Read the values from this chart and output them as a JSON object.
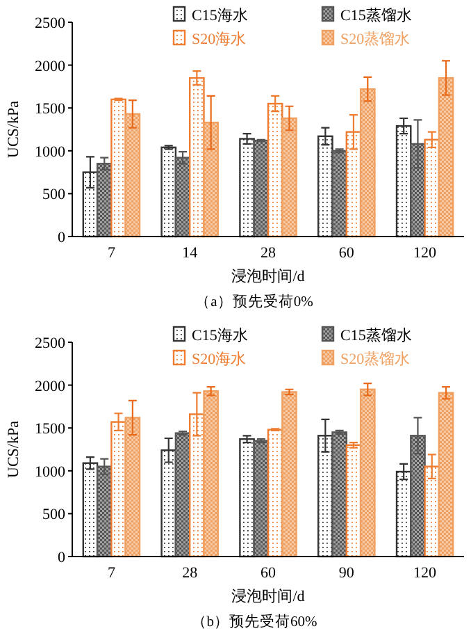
{
  "chart_data": [
    {
      "type": "bar",
      "title": "（a）预先受荷0%",
      "xlabel": "浸泡时间/d",
      "ylabel": "UCS/kPa",
      "categories": [
        "7",
        "14",
        "28",
        "60",
        "120"
      ],
      "ylim": [
        0,
        2500
      ],
      "yticks": [
        0,
        500,
        1000,
        1500,
        2000,
        2500
      ],
      "legend": "top",
      "grid": false,
      "series": [
        {
          "name": "C15海水",
          "color": "#333333",
          "values": [
            750,
            1040,
            1140,
            1170,
            1290
          ],
          "errors": [
            180,
            20,
            60,
            100,
            90
          ]
        },
        {
          "name": "C15蒸馏水",
          "color": "#555555",
          "values": [
            850,
            920,
            1120,
            1000,
            1080
          ],
          "errors": [
            70,
            70,
            10,
            20,
            280
          ]
        },
        {
          "name": "S20海水",
          "color": "#ee7d31",
          "values": [
            1600,
            1850,
            1550,
            1220,
            1130
          ],
          "errors": [
            10,
            80,
            90,
            200,
            90
          ]
        },
        {
          "name": "S20蒸馏水",
          "color": "#f0a060",
          "values": [
            1430,
            1330,
            1380,
            1720,
            1850
          ],
          "errors": [
            160,
            310,
            140,
            140,
            200
          ]
        }
      ]
    },
    {
      "type": "bar",
      "title": "（b）预先受荷60%",
      "xlabel": "浸泡时间/d",
      "ylabel": "UCS/kPa",
      "categories": [
        "7",
        "28",
        "60",
        "90",
        "120"
      ],
      "ylim": [
        0,
        2500
      ],
      "yticks": [
        0,
        500,
        1000,
        1500,
        2000,
        2500
      ],
      "legend": "top",
      "grid": false,
      "series": [
        {
          "name": "C15海水",
          "color": "#333333",
          "values": [
            1090,
            1240,
            1370,
            1410,
            990
          ],
          "errors": [
            70,
            140,
            40,
            190,
            90
          ]
        },
        {
          "name": "C15蒸馏水",
          "color": "#555555",
          "values": [
            1050,
            1440,
            1350,
            1450,
            1410
          ],
          "errors": [
            90,
            20,
            20,
            20,
            210
          ]
        },
        {
          "name": "S20海水",
          "color": "#ee7d31",
          "values": [
            1570,
            1660,
            1480,
            1300,
            1050
          ],
          "errors": [
            100,
            250,
            10,
            30,
            140
          ]
        },
        {
          "name": "S20蒸馏水",
          "color": "#f0a060",
          "values": [
            1620,
            1930,
            1920,
            1950,
            1910
          ],
          "errors": [
            200,
            50,
            30,
            70,
            70
          ]
        }
      ]
    }
  ]
}
